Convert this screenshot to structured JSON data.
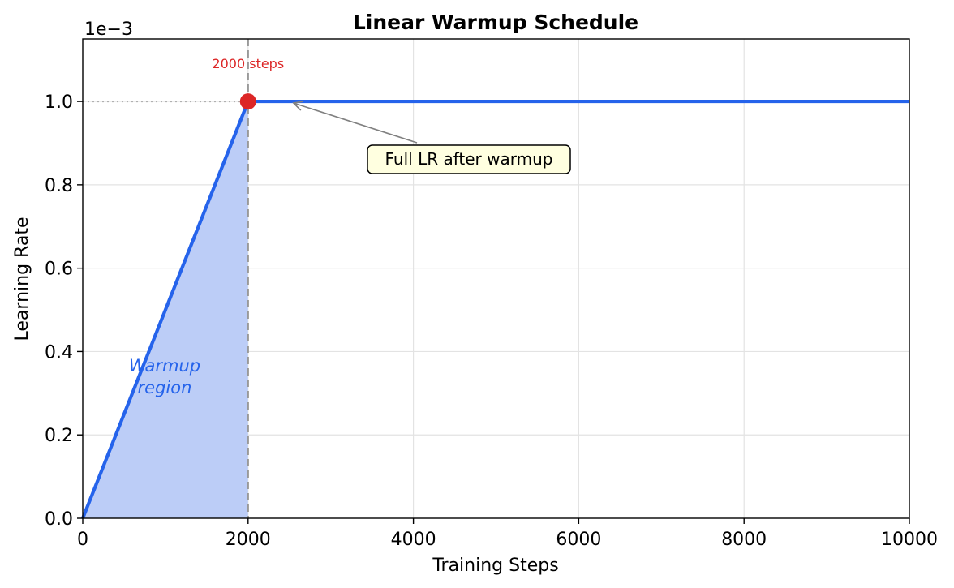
{
  "chart_data": {
    "type": "line",
    "title": "Linear Warmup Schedule",
    "xlabel": "Training Steps",
    "ylabel": "Learning Rate",
    "y_scale_label": "1e−3",
    "xlim": [
      0,
      10000
    ],
    "ylim": [
      0,
      1.15
    ],
    "y_multiplier": 0.001,
    "x_ticks": [
      0,
      2000,
      4000,
      6000,
      8000,
      10000
    ],
    "x_tick_labels": [
      "0",
      "2000",
      "4000",
      "6000",
      "8000",
      "10000"
    ],
    "y_ticks": [
      0.0,
      0.2,
      0.4,
      0.6,
      0.8,
      1.0
    ],
    "y_tick_labels": [
      "0.0",
      "0.2",
      "0.4",
      "0.6",
      "0.8",
      "1.0"
    ],
    "grid": true,
    "series": [
      {
        "x": [
          0,
          2000,
          10000
        ],
        "y": [
          0.0,
          1.0,
          1.0
        ],
        "color": "#2563eb"
      }
    ],
    "fill_region": {
      "x": [
        0,
        2000
      ],
      "color": "#bccdf7"
    },
    "warmup_end": {
      "x": 2000,
      "y": 1.0,
      "marker_color": "#dc2626"
    },
    "annotations": {
      "steps_label": "2000 steps",
      "steps_label_color": "#dc2626",
      "region_label_line1": "Warmup",
      "region_label_line2": "region",
      "region_label_color": "#2563eb",
      "callout_text": "Full LR after warmup",
      "callout_bg": "#ffffe0"
    }
  }
}
